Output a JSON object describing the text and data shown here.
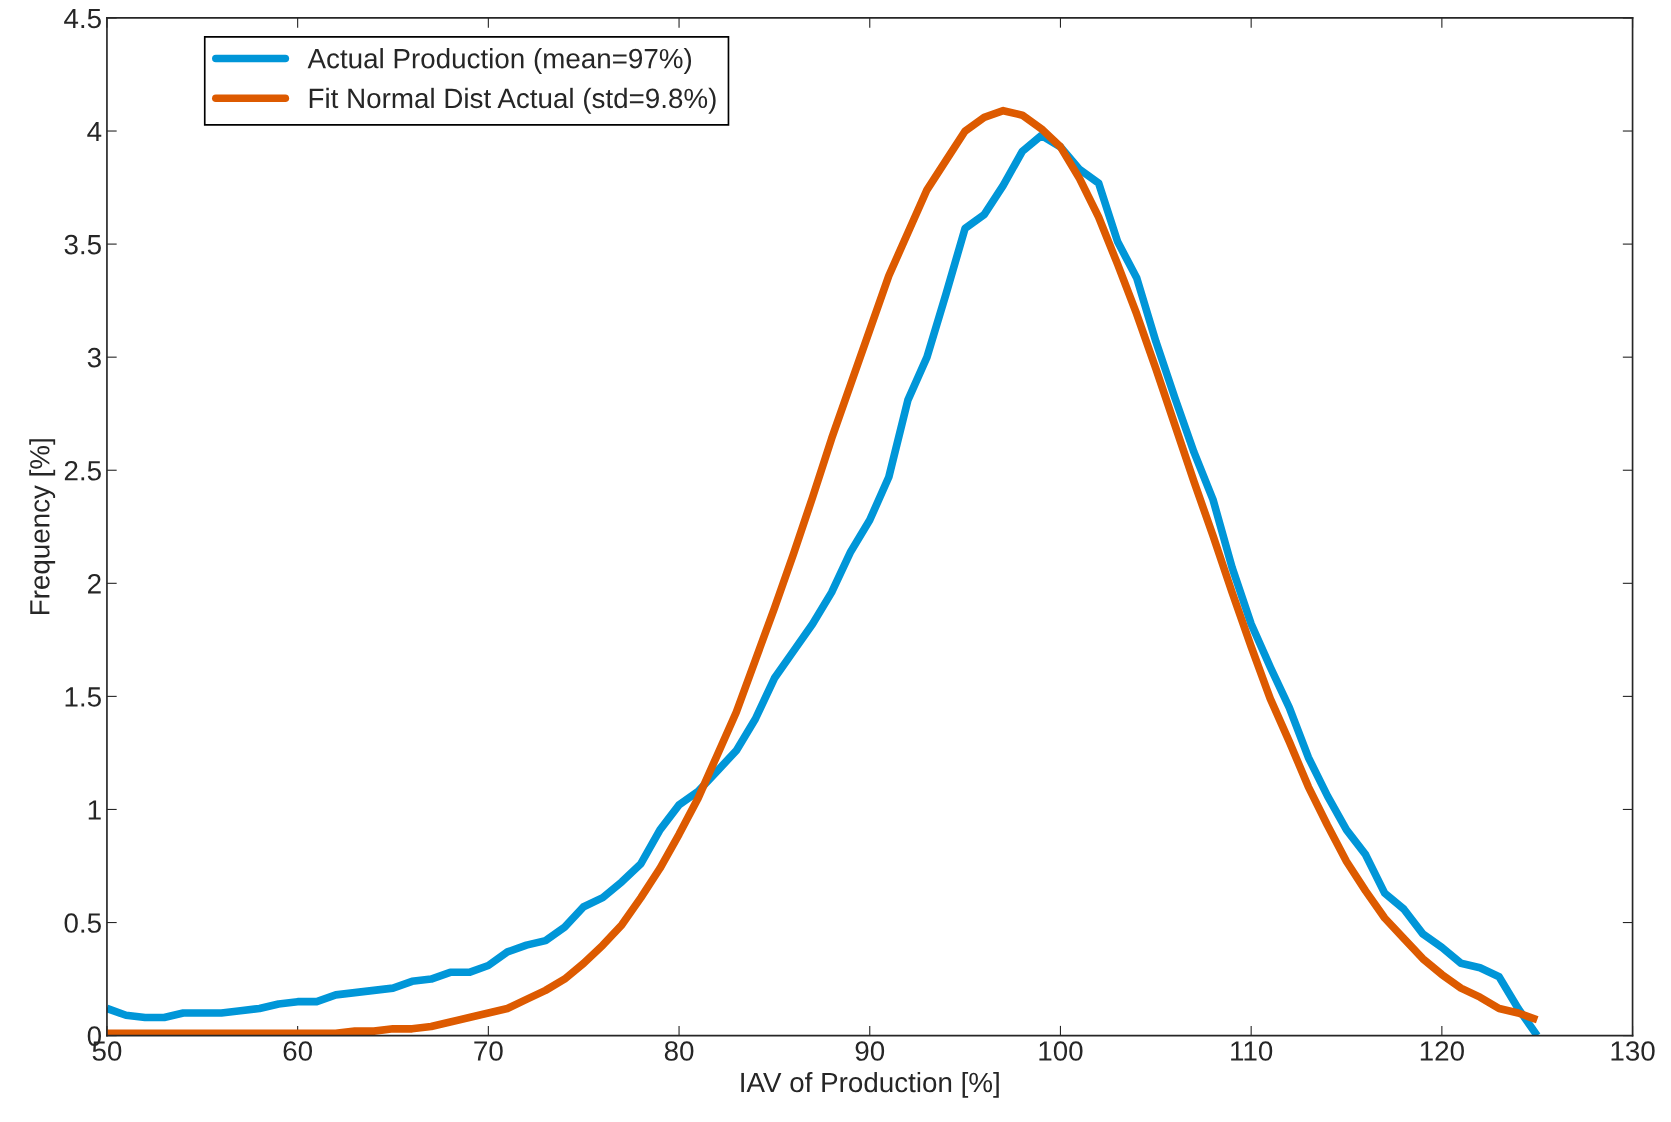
{
  "chart_data": {
    "type": "line",
    "xlabel": "IAV of Production [%]",
    "ylabel": "Frequency [%]",
    "x": [
      50,
      51,
      52,
      53,
      54,
      55,
      56,
      57,
      58,
      59,
      60,
      61,
      62,
      63,
      64,
      65,
      66,
      67,
      68,
      69,
      70,
      71,
      72,
      73,
      74,
      75,
      76,
      77,
      78,
      79,
      80,
      81,
      82,
      83,
      84,
      85,
      86,
      87,
      88,
      89,
      90,
      91,
      92,
      93,
      94,
      95,
      96,
      97,
      98,
      99,
      100,
      101,
      102,
      103,
      104,
      105,
      106,
      107,
      108,
      109,
      110,
      111,
      112,
      113,
      114,
      115,
      116,
      117,
      118,
      119,
      120,
      121,
      122,
      123,
      124,
      125
    ],
    "series": [
      {
        "name": "Actual Production (mean=97%)",
        "color": "#0096d8",
        "values": [
          0.12,
          0.09,
          0.08,
          0.08,
          0.1,
          0.1,
          0.1,
          0.11,
          0.12,
          0.14,
          0.15,
          0.15,
          0.18,
          0.19,
          0.2,
          0.21,
          0.24,
          0.25,
          0.28,
          0.28,
          0.31,
          0.37,
          0.4,
          0.42,
          0.48,
          0.57,
          0.61,
          0.68,
          0.76,
          0.91,
          1.02,
          1.08,
          1.17,
          1.26,
          1.4,
          1.58,
          1.7,
          1.82,
          1.96,
          2.14,
          2.28,
          2.47,
          2.81,
          3.0,
          3.28,
          3.57,
          3.63,
          3.76,
          3.91,
          3.98,
          3.93,
          3.83,
          3.77,
          3.51,
          3.35,
          3.07,
          2.82,
          2.58,
          2.37,
          2.07,
          1.82,
          1.63,
          1.45,
          1.23,
          1.06,
          0.91,
          0.8,
          0.63,
          0.56,
          0.45,
          0.39,
          0.32,
          0.3,
          0.26,
          0.12,
          0.0
        ]
      },
      {
        "name": "Fit Normal Dist Actual (std=9.8%)",
        "color": "#dd5a00",
        "values": [
          0.01,
          0.01,
          0.01,
          0.01,
          0.01,
          0.01,
          0.01,
          0.01,
          0.01,
          0.01,
          0.01,
          0.01,
          0.01,
          0.02,
          0.02,
          0.03,
          0.03,
          0.04,
          0.06,
          0.08,
          0.1,
          0.12,
          0.16,
          0.2,
          0.25,
          0.32,
          0.4,
          0.49,
          0.61,
          0.74,
          0.89,
          1.05,
          1.24,
          1.43,
          1.66,
          1.89,
          2.13,
          2.38,
          2.64,
          2.88,
          3.12,
          3.36,
          3.55,
          3.74,
          3.87,
          4.0,
          4.06,
          4.09,
          4.07,
          4.01,
          3.93,
          3.79,
          3.62,
          3.41,
          3.19,
          2.95,
          2.7,
          2.45,
          2.21,
          1.96,
          1.72,
          1.49,
          1.3,
          1.1,
          0.93,
          0.77,
          0.64,
          0.52,
          0.43,
          0.34,
          0.27,
          0.21,
          0.17,
          0.12,
          0.1,
          0.07
        ]
      }
    ],
    "xlim": [
      50,
      130
    ],
    "xticks": [
      50,
      60,
      70,
      80,
      90,
      100,
      110,
      120,
      130
    ],
    "ylim": [
      0,
      4.5
    ],
    "yticks": [
      0,
      0.5,
      1,
      1.5,
      2,
      2.5,
      3,
      3.5,
      4,
      4.5
    ],
    "grid": false,
    "legend": "top left",
    "line_style": "solid",
    "marker": "none"
  }
}
